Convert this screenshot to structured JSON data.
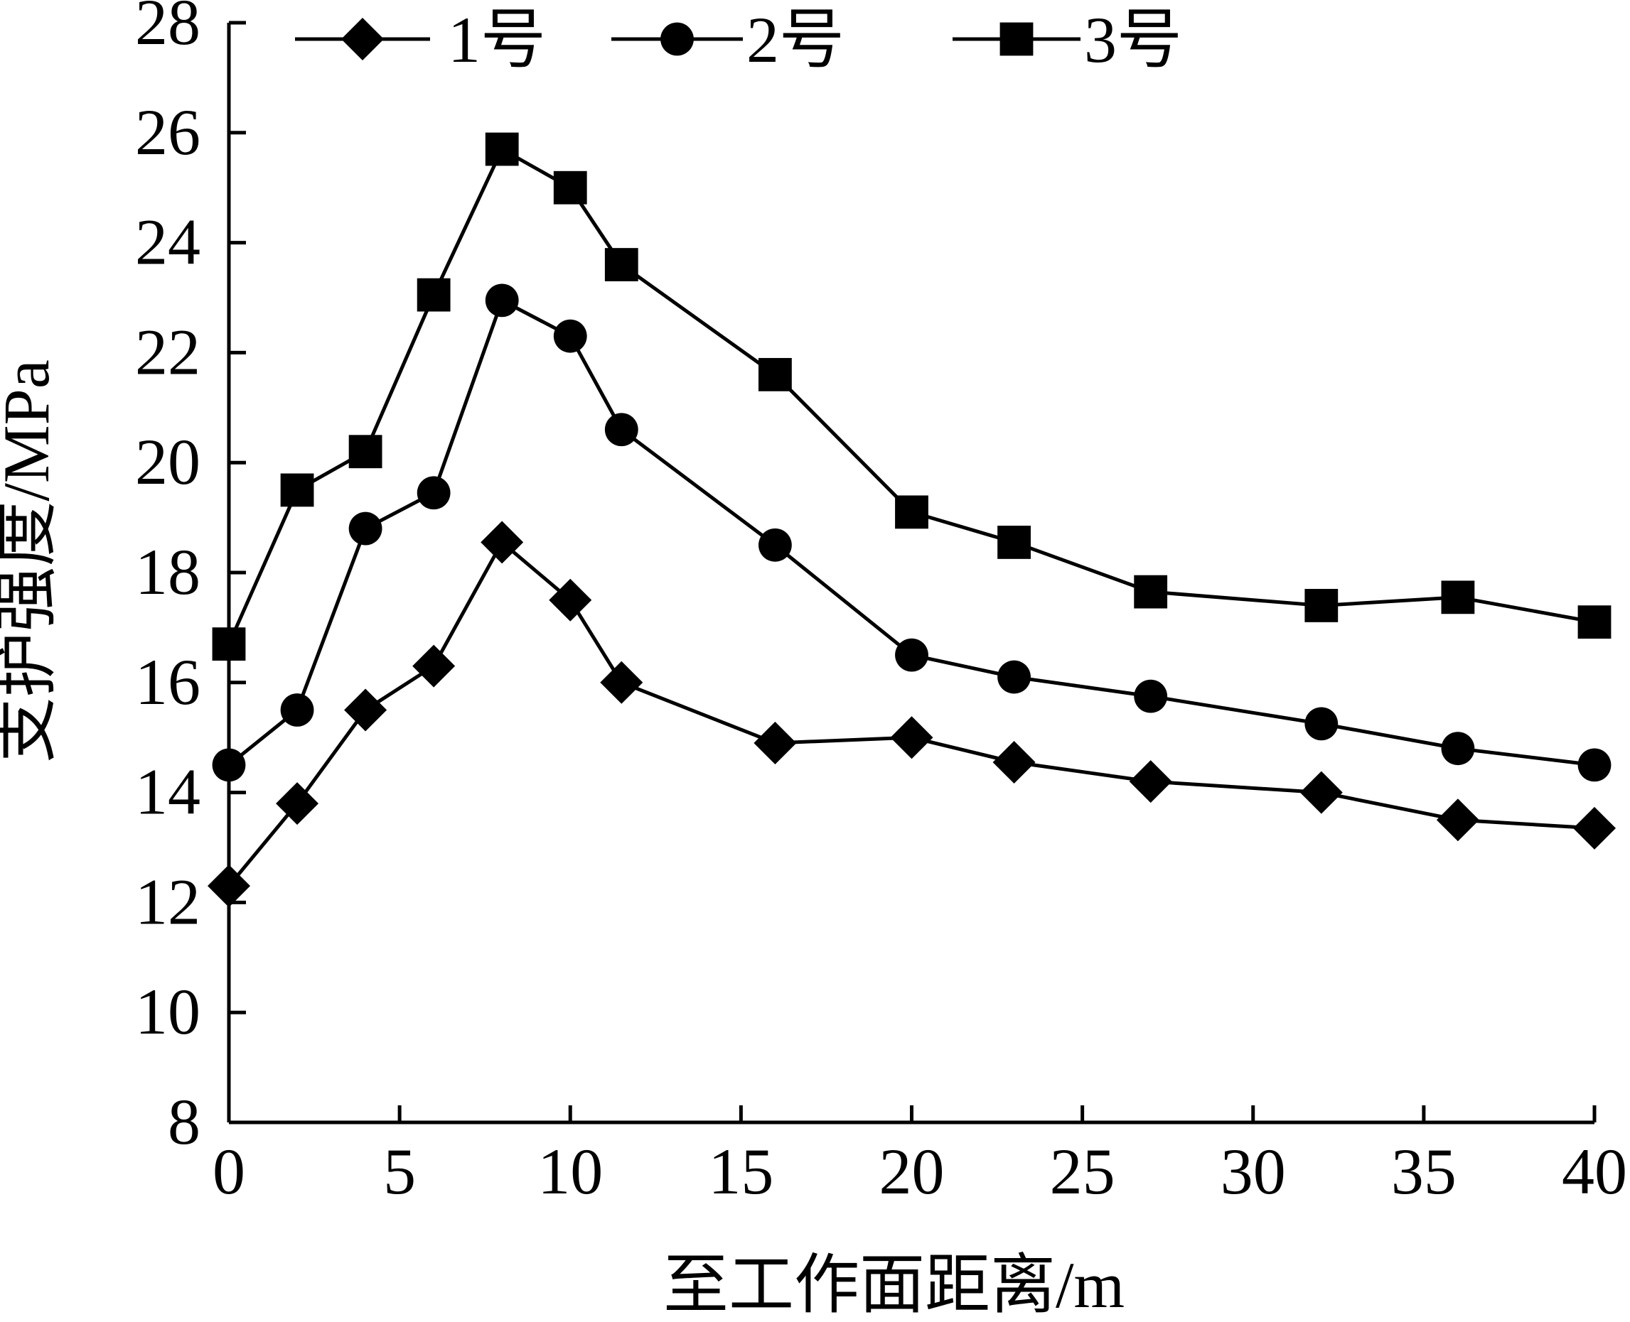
{
  "chart_data": {
    "type": "line",
    "xlabel": "至工作面距离/m",
    "ylabel": "支护强度/MPa",
    "xlim": [
      0,
      40
    ],
    "ylim": [
      8,
      28
    ],
    "xticks": [
      0,
      5,
      10,
      15,
      20,
      25,
      30,
      35,
      40
    ],
    "yticks": [
      8,
      10,
      12,
      14,
      16,
      18,
      20,
      22,
      24,
      26,
      28
    ],
    "grid": false,
    "legend_position": "top",
    "series": [
      {
        "name": "1号",
        "marker": "diamond",
        "color": "#000000",
        "x": [
          0,
          2,
          4,
          6,
          8,
          10,
          11.5,
          16,
          20,
          23,
          27,
          32,
          36,
          40
        ],
        "y": [
          12.3,
          13.8,
          15.5,
          16.3,
          18.55,
          17.5,
          16.0,
          14.9,
          15.0,
          14.55,
          14.2,
          14.0,
          13.5,
          13.35
        ]
      },
      {
        "name": "2号",
        "marker": "circle",
        "color": "#000000",
        "x": [
          0,
          2,
          4,
          6,
          8,
          10,
          11.5,
          16,
          20,
          23,
          27,
          32,
          36,
          40
        ],
        "y": [
          14.5,
          15.5,
          18.8,
          19.45,
          22.95,
          22.3,
          20.6,
          18.5,
          16.5,
          16.1,
          15.75,
          15.25,
          14.8,
          14.5
        ]
      },
      {
        "name": "3号",
        "marker": "square",
        "color": "#000000",
        "x": [
          0,
          2,
          4,
          6,
          8,
          10,
          11.5,
          16,
          20,
          23,
          27,
          32,
          36,
          40
        ],
        "y": [
          16.7,
          19.5,
          20.2,
          23.05,
          25.7,
          25.0,
          23.6,
          21.6,
          19.1,
          18.55,
          17.65,
          17.4,
          17.55,
          17.1
        ]
      }
    ]
  }
}
